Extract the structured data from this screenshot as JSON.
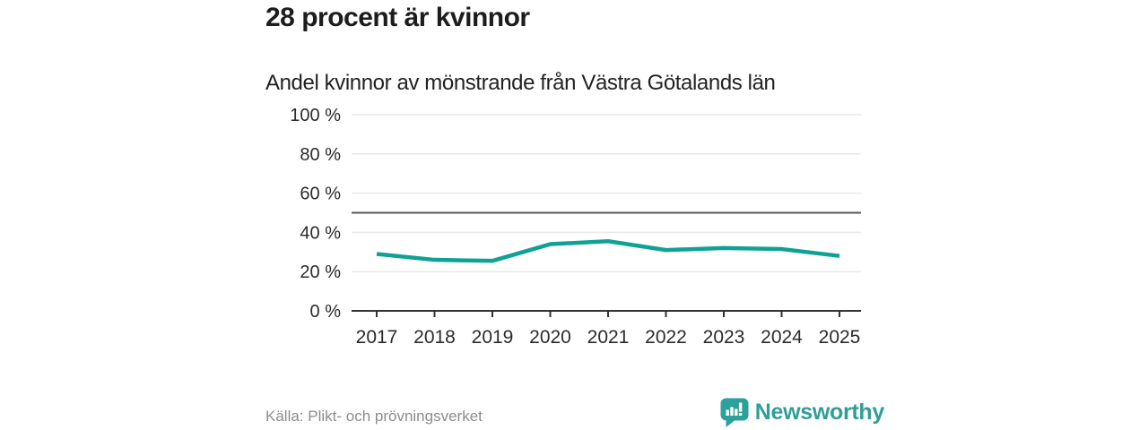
{
  "header": {
    "title": "28 procent är kvinnor"
  },
  "chart_data": {
    "type": "line",
    "title": "Andel kvinnor av mönstrande från Västra Götalands län",
    "x": [
      "2017",
      "2018",
      "2019",
      "2020",
      "2021",
      "2022",
      "2023",
      "2024",
      "2025"
    ],
    "series": [
      {
        "name": "Andel kvinnor av mönstrande",
        "color": "#0fa294",
        "values": [
          29,
          26,
          25.5,
          34,
          35.5,
          31,
          32,
          31.5,
          28
        ]
      }
    ],
    "xlabel": "",
    "ylabel": "",
    "ylim": [
      0,
      100
    ],
    "yticks": [
      0,
      20,
      40,
      60,
      80,
      100
    ],
    "ytick_labels": [
      "0 %",
      "20 %",
      "40 %",
      "60 %",
      "80 %",
      "100 %"
    ],
    "reference_line": {
      "value": 50,
      "color": "#54555c"
    },
    "grid": true,
    "gridline_color": "#e9e9e9",
    "axis_color": "#333333",
    "legend": "none"
  },
  "footer": {
    "source": "Källa: Plikt- och prövningsverket",
    "brand": {
      "name": "Newsworthy",
      "text_color": "#2f9e98",
      "icon": "newsworthy-speech-bubble-chart-icon",
      "icon_color": "#2ca19b"
    }
  }
}
